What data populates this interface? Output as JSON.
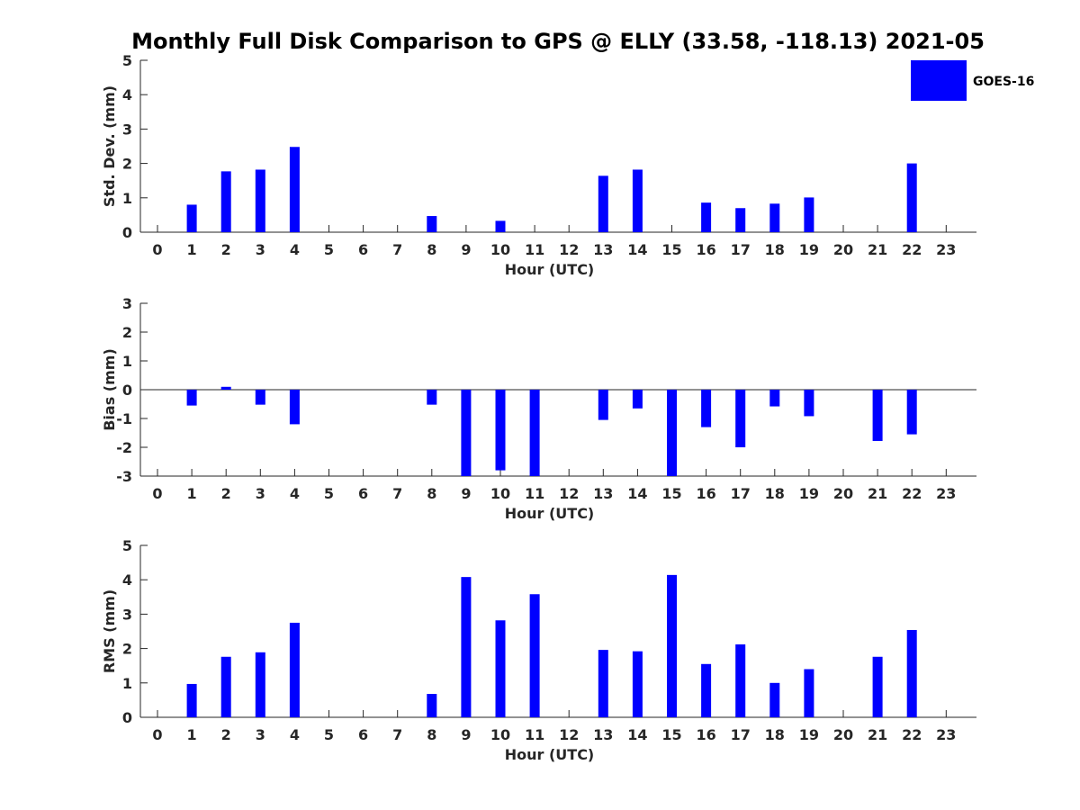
{
  "title": "Monthly Full Disk Comparison to GPS @ ELLY (33.58, -118.13) 2021-05",
  "legend": {
    "label": "GOES-16",
    "color": "#0000ff",
    "placement": "top-right"
  },
  "colors": {
    "bar": "#0000ff",
    "axis": "#262626",
    "text": "#262626"
  },
  "chart_data": [
    {
      "type": "bar",
      "name": "std-dev",
      "xlabel": "Hour (UTC)",
      "ylabel": "Std. Dev. (mm)",
      "categories": [
        "0",
        "1",
        "2",
        "3",
        "4",
        "5",
        "6",
        "7",
        "8",
        "9",
        "10",
        "11",
        "12",
        "13",
        "14",
        "15",
        "16",
        "17",
        "18",
        "19",
        "20",
        "21",
        "22",
        "23"
      ],
      "ylim": [
        0,
        5
      ],
      "yticks": [
        "0",
        "1",
        "2",
        "3",
        "4",
        "5"
      ],
      "grid": false,
      "series": [
        {
          "name": "GOES-16",
          "values": [
            null,
            0.8,
            1.77,
            1.82,
            2.48,
            null,
            null,
            null,
            0.47,
            null,
            0.33,
            null,
            null,
            1.64,
            1.82,
            null,
            0.86,
            0.7,
            0.83,
            1.01,
            null,
            null,
            2.0,
            null
          ]
        }
      ]
    },
    {
      "type": "bar",
      "name": "bias",
      "xlabel": "Hour (UTC)",
      "ylabel": "Bias (mm)",
      "categories": [
        "0",
        "1",
        "2",
        "3",
        "4",
        "5",
        "6",
        "7",
        "8",
        "9",
        "10",
        "11",
        "12",
        "13",
        "14",
        "15",
        "16",
        "17",
        "18",
        "19",
        "20",
        "21",
        "22",
        "23"
      ],
      "ylim": [
        -3,
        3
      ],
      "yticks": [
        "-3",
        "-2",
        "-1",
        "0",
        "1",
        "2",
        "3"
      ],
      "grid": false,
      "zero_line": true,
      "series": [
        {
          "name": "GOES-16",
          "values": [
            null,
            -0.55,
            0.1,
            -0.52,
            -1.2,
            null,
            null,
            null,
            -0.52,
            -3.0,
            -2.8,
            -3.0,
            null,
            -1.05,
            -0.65,
            -3.0,
            -1.3,
            -2.0,
            -0.58,
            -0.92,
            null,
            -1.78,
            -1.55,
            null
          ]
        }
      ]
    },
    {
      "type": "bar",
      "name": "rms",
      "xlabel": "Hour (UTC)",
      "ylabel": "RMS (mm)",
      "categories": [
        "0",
        "1",
        "2",
        "3",
        "4",
        "5",
        "6",
        "7",
        "8",
        "9",
        "10",
        "11",
        "12",
        "13",
        "14",
        "15",
        "16",
        "17",
        "18",
        "19",
        "20",
        "21",
        "22",
        "23"
      ],
      "ylim": [
        0,
        5
      ],
      "yticks": [
        "0",
        "1",
        "2",
        "3",
        "4",
        "5"
      ],
      "grid": false,
      "series": [
        {
          "name": "GOES-16",
          "values": [
            null,
            0.97,
            1.76,
            1.89,
            2.75,
            null,
            null,
            null,
            0.68,
            4.08,
            2.82,
            3.58,
            null,
            1.96,
            1.92,
            4.14,
            1.55,
            2.12,
            1.0,
            1.4,
            null,
            1.76,
            2.54,
            null
          ]
        }
      ]
    }
  ]
}
